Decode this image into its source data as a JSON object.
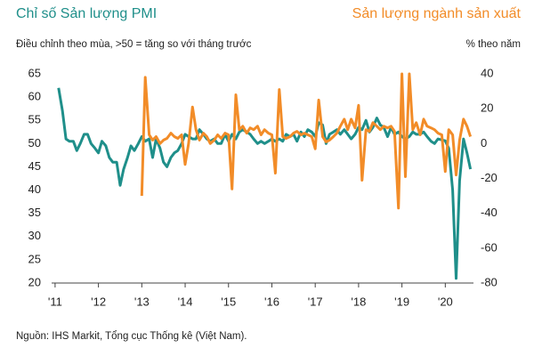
{
  "chart_data": {
    "type": "line",
    "subtitle": "Điều chỉnh theo mùa, >50 = tăng so với tháng trước",
    "y2_label": "% theo năm",
    "source": "Nguồn: IHS Markit, Tổng cục Thống kê (Việt Nam).",
    "x": [
      2011.0,
      2011.08,
      2011.17,
      2011.25,
      2011.33,
      2011.42,
      2011.5,
      2011.58,
      2011.67,
      2011.75,
      2011.83,
      2011.92,
      2012.0,
      2012.08,
      2012.17,
      2012.25,
      2012.33,
      2012.42,
      2012.5,
      2012.58,
      2012.67,
      2012.75,
      2012.83,
      2012.92,
      2013.0,
      2013.08,
      2013.17,
      2013.25,
      2013.33,
      2013.42,
      2013.5,
      2013.58,
      2013.67,
      2013.75,
      2013.83,
      2013.92,
      2014.0,
      2014.08,
      2014.17,
      2014.25,
      2014.33,
      2014.42,
      2014.5,
      2014.58,
      2014.67,
      2014.75,
      2014.83,
      2014.92,
      2015.0,
      2015.08,
      2015.17,
      2015.25,
      2015.33,
      2015.42,
      2015.5,
      2015.58,
      2015.67,
      2015.75,
      2015.83,
      2015.92,
      2016.0,
      2016.08,
      2016.17,
      2016.25,
      2016.33,
      2016.42,
      2016.5,
      2016.58,
      2016.67,
      2016.75,
      2016.83,
      2016.92,
      2017.0,
      2017.08,
      2017.17,
      2017.25,
      2017.33,
      2017.42,
      2017.5,
      2017.58,
      2017.67,
      2017.75,
      2017.83,
      2017.92,
      2018.0,
      2018.08,
      2018.17,
      2018.25,
      2018.33,
      2018.42,
      2018.5,
      2018.58,
      2018.67,
      2018.75,
      2018.83,
      2018.92,
      2019.0,
      2019.08,
      2019.17,
      2019.25,
      2019.33,
      2019.42,
      2019.5,
      2019.58,
      2019.67,
      2019.75,
      2019.83,
      2019.92,
      2020.0,
      2020.08,
      2020.17,
      2020.25,
      2020.33,
      2020.42,
      2020.5,
      2020.58
    ],
    "series": [
      {
        "name": "Chỉ số Sản lượng PMI",
        "color": "#1f8f8a",
        "axis": "y",
        "values": [
          null,
          62,
          57,
          51,
          50.5,
          50.5,
          48.5,
          50,
          52,
          52,
          50,
          49,
          48,
          50.5,
          49.5,
          47,
          46,
          46,
          41,
          44.5,
          47,
          49.5,
          48.5,
          50,
          51.5,
          50.5,
          51,
          47,
          51,
          49,
          46,
          45,
          47,
          48,
          48.5,
          50,
          52,
          51.5,
          51,
          51,
          53,
          52,
          51,
          50.5,
          51,
          50,
          50,
          52,
          50.5,
          52,
          51,
          52.5,
          53,
          52.5,
          52,
          51,
          50,
          50.5,
          50,
          50.5,
          51,
          50.5,
          51,
          50.5,
          52,
          51.5,
          52,
          50.5,
          52.5,
          51.5,
          53,
          52.5,
          51.5,
          54.5,
          54,
          50,
          52,
          52.5,
          53,
          52,
          53,
          52,
          51,
          52,
          53.5,
          53,
          55,
          52.5,
          53.5,
          55.5,
          54,
          53.5,
          51.5,
          53.5,
          52,
          52.5,
          51.5,
          51,
          51.5,
          52.5,
          52,
          52,
          52.5,
          51.5,
          50.5,
          50,
          51,
          50.8,
          50.6,
          49,
          40,
          21,
          42,
          51,
          48,
          44.5
        ]
      },
      {
        "name": "Sản lượng ngành sản xuất",
        "color": "#f28c28",
        "axis": "y2",
        "values": [
          null,
          null,
          null,
          null,
          null,
          null,
          null,
          null,
          null,
          null,
          null,
          null,
          null,
          null,
          null,
          null,
          null,
          null,
          null,
          null,
          null,
          null,
          null,
          null,
          -30,
          38,
          5,
          2,
          4,
          0,
          2,
          3,
          6,
          4,
          3,
          5,
          -12,
          0,
          21,
          8,
          2,
          6,
          4,
          0,
          2,
          5,
          3,
          6,
          5,
          -26,
          28,
          8,
          10,
          6,
          9,
          8,
          10,
          5,
          8,
          6,
          5,
          -17,
          31,
          4,
          3,
          4,
          6,
          7,
          5,
          6,
          5,
          4,
          -3,
          25,
          4,
          1,
          2,
          4,
          6,
          10,
          14,
          8,
          14,
          9,
          22,
          -21,
          8,
          7,
          12,
          10,
          8,
          10,
          9,
          10,
          7,
          -37,
          40,
          -19,
          40,
          8,
          12,
          5,
          14,
          10,
          9,
          8,
          6,
          5,
          -16,
          8,
          5,
          -18,
          2,
          14,
          10,
          4
        ]
      }
    ],
    "xlim": [
      2010.92,
      2020.65
    ],
    "xticks": [
      {
        "value": 2011,
        "label": "'11"
      },
      {
        "value": 2012,
        "label": "'12"
      },
      {
        "value": 2013,
        "label": "'13"
      },
      {
        "value": 2014,
        "label": "'14"
      },
      {
        "value": 2015,
        "label": "'15"
      },
      {
        "value": 2016,
        "label": "'16"
      },
      {
        "value": 2017,
        "label": "'17"
      },
      {
        "value": 2018,
        "label": "'18"
      },
      {
        "value": 2019,
        "label": "'19"
      },
      {
        "value": 2020,
        "label": "'20"
      }
    ],
    "ylim": [
      20,
      65
    ],
    "yticks": [
      20,
      25,
      30,
      35,
      40,
      45,
      50,
      55,
      60,
      65
    ],
    "y2lim": [
      -80,
      40
    ],
    "y2ticks": [
      -80,
      -60,
      -40,
      -20,
      0,
      20,
      40
    ]
  }
}
